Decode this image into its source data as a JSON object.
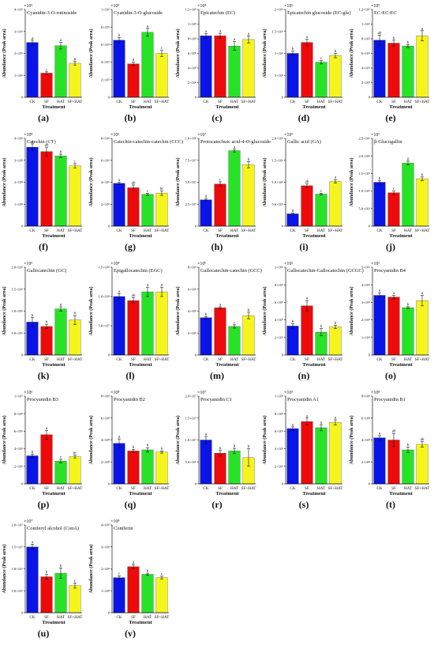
{
  "colors": {
    "CK": "#0a14e6",
    "SF": "#ee0a0a",
    "HAT": "#27e327",
    "SF+HAT": "#f5f51c"
  },
  "x_axis_label": "Treatment",
  "y_axis_label": "Abundance (Peak area)",
  "chart_data": [
    {
      "label": "(a)",
      "type": "bar",
      "title": "Cyanidin-3-O-rutinoside",
      "exponent": "×10⁶",
      "categories": [
        "CK",
        "SF",
        "HAT",
        "SF+HAT"
      ],
      "values": [
        2.5,
        1.1,
        2.35,
        1.55
      ],
      "errors": [
        0.1,
        0.06,
        0.15,
        0.08
      ],
      "letters": [
        "a",
        "c",
        "a",
        "b"
      ],
      "ylim": [
        0,
        4
      ],
      "yticks": [
        {
          "v": 0,
          "t": "0"
        },
        {
          "v": 1,
          "t": "1×10⁶"
        },
        {
          "v": 2,
          "t": "2×10⁶"
        },
        {
          "v": 3,
          "t": "3×10⁶"
        },
        {
          "v": 4,
          "t": "4×10⁶"
        }
      ]
    },
    {
      "label": "(b)",
      "type": "bar",
      "title": "Cyanidin-3-O-glucoside",
      "exponent": "×10⁵",
      "categories": [
        "CK",
        "SF",
        "HAT",
        "SF+HAT"
      ],
      "values": [
        6.5,
        3.8,
        7.4,
        5.0
      ],
      "errors": [
        0.3,
        0.2,
        0.45,
        0.35
      ],
      "letters": [
        "b",
        "d",
        "a",
        "c"
      ],
      "ylim": [
        0,
        10
      ],
      "yticks": [
        {
          "v": 0,
          "t": "0"
        },
        {
          "v": 2,
          "t": "2×10⁵"
        },
        {
          "v": 4,
          "t": "4×10⁵"
        },
        {
          "v": 6,
          "t": "6×10⁵"
        },
        {
          "v": 8,
          "t": "8×10⁵"
        },
        {
          "v": 10,
          "t": "1×10⁶"
        }
      ]
    },
    {
      "label": "(c)",
      "type": "bar",
      "title": "Epicatechin (EC)",
      "exponent": "×10⁸",
      "categories": [
        "CK",
        "SF",
        "HAT",
        "SF+HAT"
      ],
      "values": [
        8.4,
        8.4,
        7.0,
        7.9
      ],
      "errors": [
        0.3,
        0.35,
        0.6,
        0.5
      ],
      "letters": [
        "a",
        "a",
        "a",
        "a"
      ],
      "ylim": [
        0,
        12
      ],
      "yticks": [
        {
          "v": 0,
          "t": "0"
        },
        {
          "v": 2,
          "t": "2×10⁸"
        },
        {
          "v": 4,
          "t": "4×10⁸"
        },
        {
          "v": 6,
          "t": "6×10⁸"
        },
        {
          "v": 8,
          "t": "8×10⁸"
        },
        {
          "v": 10,
          "t": "1×10⁹"
        },
        {
          "v": 12,
          "t": "1.2×10⁹"
        }
      ]
    },
    {
      "label": "(d)",
      "type": "bar",
      "title": "Epicatechin glucoside (EC-glu)",
      "exponent": "×10⁶",
      "categories": [
        "CK",
        "SF",
        "HAT",
        "SF+HAT"
      ],
      "values": [
        1.0,
        1.25,
        0.8,
        0.95
      ],
      "errors": [
        0.05,
        0.07,
        0.04,
        0.05
      ],
      "letters": [
        "b",
        "a",
        "c",
        "b"
      ],
      "ylim": [
        0,
        2
      ],
      "yticks": [
        {
          "v": 0,
          "t": "0"
        },
        {
          "v": 0.5,
          "t": "5×10⁵"
        },
        {
          "v": 1,
          "t": "1×10⁶"
        },
        {
          "v": 1.5,
          "t": "1.5×10⁶"
        },
        {
          "v": 2,
          "t": "2×10⁶"
        }
      ]
    },
    {
      "label": "(e)",
      "type": "bar",
      "title": "EC-EC-EC",
      "exponent": "×10⁵",
      "categories": [
        "CK",
        "SF",
        "HAT",
        "SF+HAT"
      ],
      "values": [
        7.8,
        7.4,
        7.0,
        8.4
      ],
      "errors": [
        0.7,
        0.4,
        0.2,
        0.7
      ],
      "letters": [
        "ab",
        "b",
        "b",
        "a"
      ],
      "ylim": [
        0,
        12
      ],
      "yticks": [
        {
          "v": 0,
          "t": "0"
        },
        {
          "v": 2,
          "t": "2×10⁵"
        },
        {
          "v": 4,
          "t": "4×10⁵"
        },
        {
          "v": 6,
          "t": "6×10⁵"
        },
        {
          "v": 8,
          "t": "8×10⁵"
        },
        {
          "v": 10,
          "t": "1×10⁶"
        },
        {
          "v": 12,
          "t": "1.2×10⁶"
        }
      ]
    },
    {
      "label": "(f)",
      "type": "bar",
      "title": "Catechin (CT)",
      "exponent": "×10⁸",
      "categories": [
        "CK",
        "SF",
        "HAT",
        "SF+HAT"
      ],
      "values": [
        3.6,
        3.4,
        3.2,
        2.75
      ],
      "errors": [
        0.15,
        0.2,
        0.08,
        0.1
      ],
      "letters": [
        "a",
        "ab",
        "b",
        "c"
      ],
      "ylim": [
        0,
        4
      ],
      "yticks": [
        {
          "v": 0,
          "t": "0"
        },
        {
          "v": 1,
          "t": "1×10⁸"
        },
        {
          "v": 2,
          "t": "2×10⁸"
        },
        {
          "v": 3,
          "t": "3×10⁸"
        },
        {
          "v": 4,
          "t": "4×10⁸"
        }
      ]
    },
    {
      "label": "(g)",
      "type": "bar",
      "title": "Catechin-catechin-catechin (CCC)",
      "exponent": "×10⁶",
      "categories": [
        "CK",
        "SF",
        "HAT",
        "SF+HAT"
      ],
      "values": [
        3.9,
        3.5,
        2.9,
        3.0
      ],
      "errors": [
        0.1,
        0.25,
        0.1,
        0.2
      ],
      "letters": [
        "a",
        "ab",
        "c",
        "bc"
      ],
      "ylim": [
        0,
        8
      ],
      "yticks": [
        {
          "v": 0,
          "t": "0"
        },
        {
          "v": 2,
          "t": "2×10⁶"
        },
        {
          "v": 4,
          "t": "4×10⁶"
        },
        {
          "v": 6,
          "t": "6×10⁶"
        },
        {
          "v": 8,
          "t": "8×10⁶"
        }
      ]
    },
    {
      "label": "(h)",
      "type": "bar",
      "title": "Protocatechuic acid-4-O-glucoside",
      "exponent": "×10⁷",
      "categories": [
        "CK",
        "SF",
        "HAT",
        "SF+HAT"
      ],
      "values": [
        3.0,
        4.8,
        8.6,
        7.0
      ],
      "errors": [
        0.1,
        0.25,
        0.15,
        0.35
      ],
      "letters": [
        "d",
        "c",
        "a",
        "b"
      ],
      "ylim": [
        0,
        10
      ],
      "yticks": [
        {
          "v": 0,
          "t": "0"
        },
        {
          "v": 2.5,
          "t": "2.5×10⁷"
        },
        {
          "v": 5,
          "t": "5.0×10⁷"
        },
        {
          "v": 7.5,
          "t": "7.5×10⁷"
        },
        {
          "v": 10,
          "t": "1.0×10⁸"
        }
      ]
    },
    {
      "label": "(i)",
      "type": "bar",
      "title": "Gallic acid (GA)",
      "exponent": "×10⁶",
      "categories": [
        "CK",
        "SF",
        "HAT",
        "SF+HAT"
      ],
      "values": [
        0.28,
        0.92,
        0.73,
        1.02
      ],
      "errors": [
        0.02,
        0.04,
        0.02,
        0.04
      ],
      "letters": [
        "d",
        "ab",
        "c",
        "a"
      ],
      "ylim": [
        0,
        2
      ],
      "yticks": [
        {
          "v": 0,
          "t": "0"
        },
        {
          "v": 0.5,
          "t": "5.0×10⁵"
        },
        {
          "v": 1,
          "t": "1.0×10⁶"
        },
        {
          "v": 1.5,
          "t": "1.5×10⁶"
        },
        {
          "v": 2,
          "t": "2.0×10⁶"
        }
      ]
    },
    {
      "label": "(j)",
      "type": "bar",
      "title": "β-Glucogallin",
      "exponent": "×10⁶",
      "categories": [
        "CK",
        "SF",
        "HAT",
        "SF+HAT"
      ],
      "values": [
        1.25,
        0.95,
        1.8,
        1.35
      ],
      "errors": [
        0.05,
        0.05,
        0.06,
        0.05
      ],
      "letters": [
        "b",
        "c",
        "a",
        "b"
      ],
      "ylim": [
        0,
        2.5
      ],
      "yticks": [
        {
          "v": 0,
          "t": "0"
        },
        {
          "v": 0.5,
          "t": "5.0×10⁵"
        },
        {
          "v": 1,
          "t": "1.0×10⁶"
        },
        {
          "v": 1.5,
          "t": "1.5×10⁶"
        },
        {
          "v": 2,
          "t": "2.0×10⁶"
        },
        {
          "v": 2.5,
          "t": "2.5×10⁶"
        }
      ]
    },
    {
      "label": "(k)",
      "type": "bar",
      "title": "Gallocatechin (GC)",
      "exponent": "×10⁶",
      "categories": [
        "CK",
        "SF",
        "HAT",
        "SF+HAT"
      ],
      "values": [
        0.75,
        0.65,
        1.05,
        0.8
      ],
      "errors": [
        0.1,
        0.05,
        0.05,
        0.1
      ],
      "letters": [
        "b",
        "b",
        "a",
        "b"
      ],
      "ylim": [
        0,
        2
      ],
      "yticks": [
        {
          "v": 0,
          "t": "0"
        },
        {
          "v": 0.5,
          "t": "5.0×10⁵"
        },
        {
          "v": 1,
          "t": "1.0×10⁶"
        },
        {
          "v": 1.5,
          "t": "1.5×10⁶"
        },
        {
          "v": 2,
          "t": "2.0×10⁶"
        }
      ]
    },
    {
      "label": "(l)",
      "type": "bar",
      "title": "Epigallocatechin (EGC)",
      "exponent": "×10⁸",
      "categories": [
        "CK",
        "SF",
        "HAT",
        "SF+HAT"
      ],
      "values": [
        1.0,
        0.93,
        1.08,
        1.08
      ],
      "errors": [
        0.05,
        0.05,
        0.08,
        0.08
      ],
      "letters": [
        "a",
        "ab",
        "a",
        "a"
      ],
      "ylim": [
        0,
        1.5
      ],
      "yticks": [
        {
          "v": 0,
          "t": "0"
        },
        {
          "v": 0.5,
          "t": "5.0×10⁷"
        },
        {
          "v": 1,
          "t": "1.0×10⁸"
        },
        {
          "v": 1.5,
          "t": "1.5×10⁸"
        }
      ]
    },
    {
      "label": "(m)",
      "type": "bar",
      "title": "Gallocatechin-catechin (GCC)",
      "exponent": "×10⁶",
      "categories": [
        "CK",
        "SF",
        "HAT",
        "SF+HAT"
      ],
      "values": [
        3.4,
        4.3,
        2.6,
        3.6
      ],
      "errors": [
        0.1,
        0.1,
        0.15,
        0.3
      ],
      "letters": [
        "b",
        "a",
        "c",
        "b"
      ],
      "ylim": [
        0,
        8
      ],
      "yticks": [
        {
          "v": 0,
          "t": "0"
        },
        {
          "v": 2,
          "t": "2×10⁶"
        },
        {
          "v": 4,
          "t": "4×10⁶"
        },
        {
          "v": 6,
          "t": "6×10⁶"
        },
        {
          "v": 8,
          "t": "8×10⁶"
        }
      ]
    },
    {
      "label": "(n)",
      "type": "bar",
      "title": "Gallocatechin-Gallocatechin (GCGC)",
      "exponent": "×10⁵",
      "categories": [
        "CK",
        "SF",
        "HAT",
        "SF+HAT"
      ],
      "values": [
        3.3,
        5.6,
        2.6,
        3.2
      ],
      "errors": [
        0.25,
        0.6,
        0.4,
        0.2
      ],
      "letters": [
        "b",
        "a",
        "b",
        "b"
      ],
      "ylim": [
        0,
        10
      ],
      "yticks": [
        {
          "v": 0,
          "t": "0"
        },
        {
          "v": 2,
          "t": "2×10⁵"
        },
        {
          "v": 4,
          "t": "4×10⁵"
        },
        {
          "v": 6,
          "t": "6×10⁵"
        },
        {
          "v": 8,
          "t": "8×10⁵"
        },
        {
          "v": 10,
          "t": "1×10⁶"
        }
      ]
    },
    {
      "label": "(o)",
      "type": "bar",
      "title": "Procyanidin B4",
      "exponent": "×10⁶",
      "categories": [
        "CK",
        "SF",
        "HAT",
        "SF+HAT"
      ],
      "values": [
        3.4,
        3.3,
        2.7,
        3.1
      ],
      "errors": [
        0.15,
        0.1,
        0.05,
        0.3
      ],
      "letters": [
        "a",
        "a",
        "b",
        "a"
      ],
      "ylim": [
        0,
        5
      ],
      "yticks": [
        {
          "v": 0,
          "t": "0"
        },
        {
          "v": 1,
          "t": "1×10⁶"
        },
        {
          "v": 2,
          "t": "2×10⁶"
        },
        {
          "v": 3,
          "t": "3×10⁶"
        },
        {
          "v": 4,
          "t": "4×10⁶"
        },
        {
          "v": 5,
          "t": "5×10⁶"
        }
      ]
    },
    {
      "label": "(p)",
      "type": "bar",
      "title": "Procyanidin B3",
      "exponent": "×10⁶",
      "categories": [
        "CK",
        "SF",
        "HAT",
        "SF+HAT"
      ],
      "values": [
        3.2,
        5.6,
        2.6,
        3.1
      ],
      "errors": [
        0.2,
        0.5,
        0.2,
        0.15
      ],
      "letters": [
        "b",
        "a",
        "c",
        "bc"
      ],
      "ylim": [
        0,
        10
      ],
      "yticks": [
        {
          "v": 0,
          "t": "0"
        },
        {
          "v": 2,
          "t": "2×10⁶"
        },
        {
          "v": 4,
          "t": "4×10⁶"
        },
        {
          "v": 6,
          "t": "6×10⁶"
        },
        {
          "v": 8,
          "t": "8×10⁶"
        },
        {
          "v": 10,
          "t": "1×10⁷"
        }
      ]
    },
    {
      "label": "(q)",
      "type": "bar",
      "title": "Procyanidin B2",
      "exponent": "×10⁸",
      "categories": [
        "CK",
        "SF",
        "HAT",
        "SF+HAT"
      ],
      "values": [
        3.7,
        3.0,
        3.1,
        2.9
      ],
      "errors": [
        0.4,
        0.15,
        0.2,
        0.1
      ],
      "letters": [
        "a",
        "b",
        "b",
        "b"
      ],
      "ylim": [
        0,
        8
      ],
      "yticks": [
        {
          "v": 0,
          "t": "0"
        },
        {
          "v": 2,
          "t": "2×10⁸"
        },
        {
          "v": 4,
          "t": "4×10⁸"
        },
        {
          "v": 6,
          "t": "6×10⁸"
        },
        {
          "v": 8,
          "t": "8×10⁸"
        }
      ]
    },
    {
      "label": "(r)",
      "type": "bar",
      "title": "Procyanidin C1",
      "exponent": "×10⁷",
      "categories": [
        "CK",
        "SF",
        "HAT",
        "SF+HAT"
      ],
      "values": [
        1.0,
        0.7,
        0.75,
        0.6
      ],
      "errors": [
        0.08,
        0.06,
        0.06,
        0.2
      ],
      "letters": [
        "a",
        "b",
        "b",
        "b"
      ],
      "ylim": [
        0,
        2
      ],
      "yticks": [
        {
          "v": 0,
          "t": "0"
        },
        {
          "v": 0.5,
          "t": "5.0×10⁶"
        },
        {
          "v": 1,
          "t": "1.0×10⁷"
        },
        {
          "v": 1.5,
          "t": "1.5×10⁷"
        },
        {
          "v": 2,
          "t": "2.0×10⁷"
        }
      ]
    },
    {
      "label": "(s)",
      "type": "bar",
      "title": "Procyanidin A1",
      "exponent": "×10⁵",
      "categories": [
        "CK",
        "SF",
        "HAT",
        "SF+HAT"
      ],
      "values": [
        6.3,
        7.1,
        6.4,
        7.0
      ],
      "errors": [
        0.2,
        0.4,
        0.35,
        0.3
      ],
      "letters": [
        "a",
        "a",
        "a",
        "a"
      ],
      "ylim": [
        0,
        10
      ],
      "yticks": [
        {
          "v": 0,
          "t": "0"
        },
        {
          "v": 2,
          "t": "2×10⁵"
        },
        {
          "v": 4,
          "t": "4×10⁵"
        },
        {
          "v": 6,
          "t": "6×10⁵"
        },
        {
          "v": 8,
          "t": "8×10⁵"
        },
        {
          "v": 10,
          "t": "1×10⁶"
        }
      ]
    },
    {
      "label": "(t)",
      "type": "bar",
      "title": "Procyanidin B1",
      "exponent": "×10⁸",
      "categories": [
        "CK",
        "SF",
        "HAT",
        "SF+HAT"
      ],
      "values": [
        4.2,
        4.0,
        3.1,
        3.6
      ],
      "errors": [
        0.2,
        0.6,
        0.25,
        0.25
      ],
      "letters": [
        "a",
        "ab",
        "b",
        "ab"
      ],
      "ylim": [
        0,
        8
      ],
      "yticks": [
        {
          "v": 0,
          "t": "0"
        },
        {
          "v": 2,
          "t": "2×10⁸"
        },
        {
          "v": 4,
          "t": "4×10⁸"
        },
        {
          "v": 6,
          "t": "6×10⁸"
        },
        {
          "v": 8,
          "t": "8×10⁸"
        }
      ]
    },
    {
      "label": "(u)",
      "type": "bar",
      "title": "Coniferyl alcohol (ConA)",
      "exponent": "×10⁷",
      "categories": [
        "CK",
        "SF",
        "HAT",
        "SF+HAT"
      ],
      "values": [
        1.5,
        0.82,
        0.9,
        0.62
      ],
      "errors": [
        0.06,
        0.05,
        0.12,
        0.06
      ],
      "letters": [
        "a",
        "b",
        "b",
        "c"
      ],
      "ylim": [
        0,
        2
      ],
      "yticks": [
        {
          "v": 0,
          "t": "0"
        },
        {
          "v": 0.5,
          "t": "5.0×10⁶"
        },
        {
          "v": 1,
          "t": "1.0×10⁷"
        },
        {
          "v": 1.5,
          "t": "1.5×10⁷"
        },
        {
          "v": 2,
          "t": "2.0×10⁷"
        }
      ]
    },
    {
      "label": "(v)",
      "type": "bar",
      "title": "Coniferin",
      "exponent": "×10⁸",
      "categories": [
        "CK",
        "SF",
        "HAT",
        "SF+HAT"
      ],
      "values": [
        1.6,
        2.1,
        1.75,
        1.6
      ],
      "errors": [
        0.08,
        0.1,
        0.05,
        0.06
      ],
      "letters": [
        "c",
        "a",
        "b",
        "c"
      ],
      "ylim": [
        0,
        4
      ],
      "yticks": [
        {
          "v": 0,
          "t": "0"
        },
        {
          "v": 1,
          "t": "1×10⁸"
        },
        {
          "v": 2,
          "t": "2×10⁸"
        },
        {
          "v": 3,
          "t": "3×10⁸"
        },
        {
          "v": 4,
          "t": "4×10⁸"
        }
      ]
    }
  ]
}
